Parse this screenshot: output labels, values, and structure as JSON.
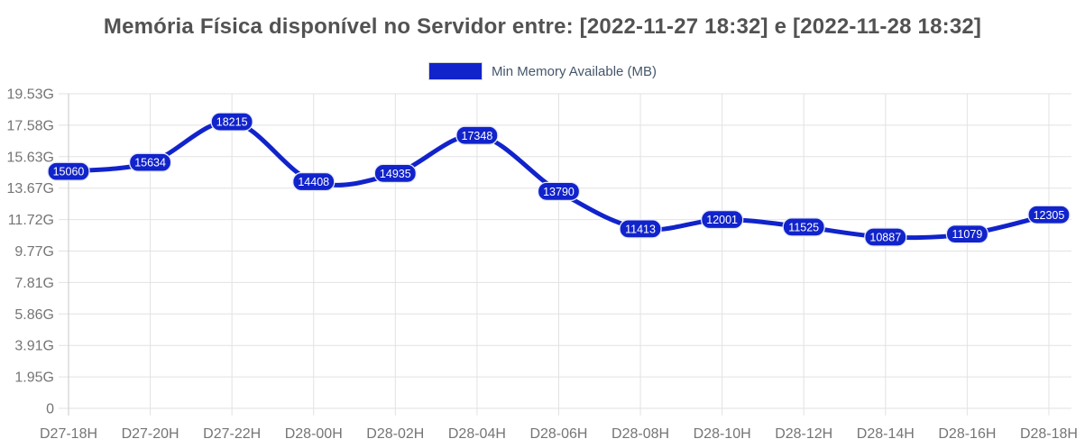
{
  "header": {
    "title": "Memória Física disponível no Servidor entre: [2022-11-27 18:32] e [2022-11-28 18:32]"
  },
  "legend": {
    "label": "Min Memory Available (MB)",
    "swatch_color": "#1123cb"
  },
  "chart_data": {
    "type": "line",
    "title": "Memória Física disponível no Servidor entre: [2022-11-27 18:32] e [2022-11-28 18:32]",
    "legend_entries": [
      "Min Memory Available (MB)"
    ],
    "legend_position": "top",
    "grid": true,
    "data_labels": true,
    "categories": [
      "D27-18H",
      "D27-20H",
      "D27-22H",
      "D28-00H",
      "D28-02H",
      "D28-04H",
      "D28-06H",
      "D28-08H",
      "D28-10H",
      "D28-12H",
      "D28-14H",
      "D28-16H",
      "D28-18H"
    ],
    "series": [
      {
        "name": "Min Memory Available (MB)",
        "values": [
          15060,
          15634,
          18215,
          14408,
          14935,
          17348,
          13790,
          11413,
          12001,
          11525,
          10887,
          11079,
          12305
        ],
        "color": "#1123cb"
      }
    ],
    "y_axis": {
      "min": 0,
      "max": 20000,
      "tick_step": 2000,
      "tick_labels_top_to_bottom": [
        "19.53G",
        "17.58G",
        "15.63G",
        "13.67G",
        "11.72G",
        "9.77G",
        "7.81G",
        "5.86G",
        "3.91G",
        "1.95G",
        "0"
      ]
    },
    "colors": {
      "line": "#1123cb",
      "point_label_bg": "#1123cb",
      "point_label_border": "#e6e9f8",
      "point_label_text": "#ffffff",
      "grid": "#e2e2e2",
      "axis_line": "#c9c9c9",
      "tick_text": "#757575"
    }
  }
}
